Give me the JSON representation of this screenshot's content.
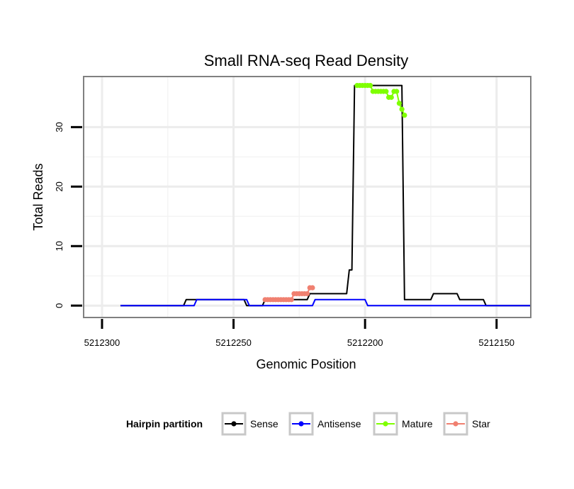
{
  "chart_data": {
    "type": "line",
    "title": "Small RNA-seq Read Density",
    "xlabel": "Genomic Position",
    "ylabel": "Total Reads",
    "xlim": [
      5212307,
      5212137
    ],
    "ylim": [
      -2,
      38.5
    ],
    "xticks": [
      5212300,
      5212250,
      5212200,
      5212150
    ],
    "yticks": [
      0,
      10,
      20,
      30
    ],
    "grid": true,
    "legend": {
      "title": "Hairpin partition",
      "position": "bottom",
      "entries": [
        {
          "name": "Sense",
          "color": "#000000"
        },
        {
          "name": "Antisense",
          "color": "#0000ff"
        },
        {
          "name": "Mature",
          "color": "#7fff00"
        },
        {
          "name": "Star",
          "color": "#f08070"
        }
      ]
    },
    "series": [
      {
        "name": "Sense",
        "color": "#000000",
        "points": [
          [
            5212293,
            0
          ],
          [
            5212269,
            0
          ],
          [
            5212268,
            1
          ],
          [
            5212246,
            1
          ],
          [
            5212245,
            0
          ],
          [
            5212239,
            0
          ],
          [
            5212238,
            1
          ],
          [
            5212222,
            1
          ],
          [
            5212221,
            2
          ],
          [
            5212213,
            2
          ],
          [
            5212207,
            2
          ],
          [
            5212206,
            6
          ],
          [
            5212205,
            6
          ],
          [
            5212204,
            37
          ],
          [
            5212186,
            37
          ],
          [
            5212185,
            1
          ],
          [
            5212175,
            1
          ],
          [
            5212174,
            2
          ],
          [
            5212165,
            2
          ],
          [
            5212164,
            1
          ],
          [
            5212155,
            1
          ],
          [
            5212154,
            0
          ],
          [
            5212137,
            0
          ]
        ]
      },
      {
        "name": "Antisense",
        "color": "#0000ff",
        "points": [
          [
            5212293,
            0
          ],
          [
            5212265,
            0
          ],
          [
            5212264,
            1
          ],
          [
            5212245,
            1
          ],
          [
            5212244,
            0
          ],
          [
            5212220,
            0
          ],
          [
            5212219,
            1
          ],
          [
            5212200,
            1
          ],
          [
            5212199,
            0
          ],
          [
            5212137,
            0
          ]
        ]
      },
      {
        "name": "Mature",
        "color": "#7fff00",
        "points": [
          [
            5212203,
            37
          ],
          [
            5212202,
            37
          ],
          [
            5212201,
            37
          ],
          [
            5212200,
            37
          ],
          [
            5212199,
            37
          ],
          [
            5212198,
            37
          ],
          [
            5212197,
            36
          ],
          [
            5212196,
            36
          ],
          [
            5212195,
            36
          ],
          [
            5212194,
            36
          ],
          [
            5212193,
            36
          ],
          [
            5212192,
            36
          ],
          [
            5212191,
            35
          ],
          [
            5212190,
            35
          ],
          [
            5212189,
            36
          ],
          [
            5212188,
            36
          ],
          [
            5212187,
            34
          ],
          [
            5212186,
            33
          ],
          [
            5212185,
            32
          ]
        ]
      },
      {
        "name": "Star",
        "color": "#f08070",
        "points": [
          [
            5212238,
            1
          ],
          [
            5212237,
            1
          ],
          [
            5212236,
            1
          ],
          [
            5212235,
            1
          ],
          [
            5212234,
            1
          ],
          [
            5212233,
            1
          ],
          [
            5212232,
            1
          ],
          [
            5212231,
            1
          ],
          [
            5212230,
            1
          ],
          [
            5212229,
            1
          ],
          [
            5212228,
            1
          ],
          [
            5212227,
            2
          ],
          [
            5212226,
            2
          ],
          [
            5212225,
            2
          ],
          [
            5212224,
            2
          ],
          [
            5212223,
            2
          ],
          [
            5212222,
            2
          ],
          [
            5212221,
            3
          ],
          [
            5212220,
            3
          ]
        ]
      }
    ]
  }
}
